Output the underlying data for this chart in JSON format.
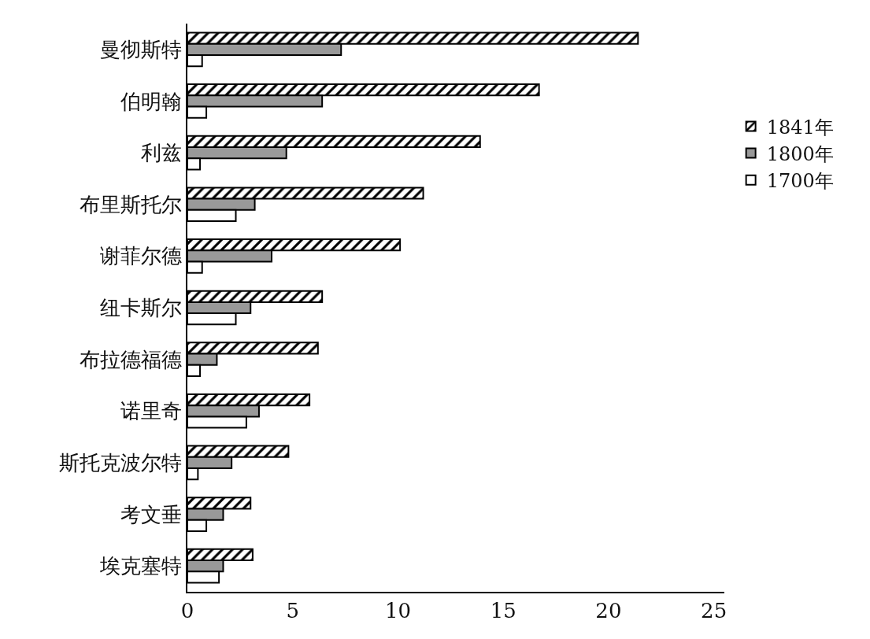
{
  "chart_data": {
    "type": "bar",
    "orientation": "horizontal",
    "categories": [
      "曼彻斯特",
      "伯明翰",
      "利兹",
      "布里斯托尔",
      "谢菲尔德",
      "纽卡斯尔",
      "布拉德福德",
      "诺里奇",
      "斯托克波尔特",
      "考文垂",
      "埃克塞特"
    ],
    "series": [
      {
        "name": "1841年",
        "color": "#000000",
        "values": [
          21.4,
          16.7,
          13.9,
          11.2,
          10.1,
          6.4,
          6.2,
          5.8,
          4.8,
          3.0,
          3.1
        ]
      },
      {
        "name": "1800年",
        "color": "#999999",
        "values": [
          7.3,
          6.4,
          4.7,
          3.2,
          4.0,
          3.0,
          1.4,
          3.4,
          2.1,
          1.7,
          1.7
        ]
      },
      {
        "name": "1700年",
        "color": "#ffffff",
        "values": [
          0.7,
          0.9,
          0.6,
          2.3,
          0.7,
          2.3,
          0.6,
          2.8,
          0.5,
          0.9,
          1.5
        ]
      }
    ],
    "xlim": [
      0,
      25.5
    ],
    "xticks": [
      0,
      5,
      10,
      15,
      20,
      25
    ],
    "grid": false,
    "legend": "right"
  }
}
